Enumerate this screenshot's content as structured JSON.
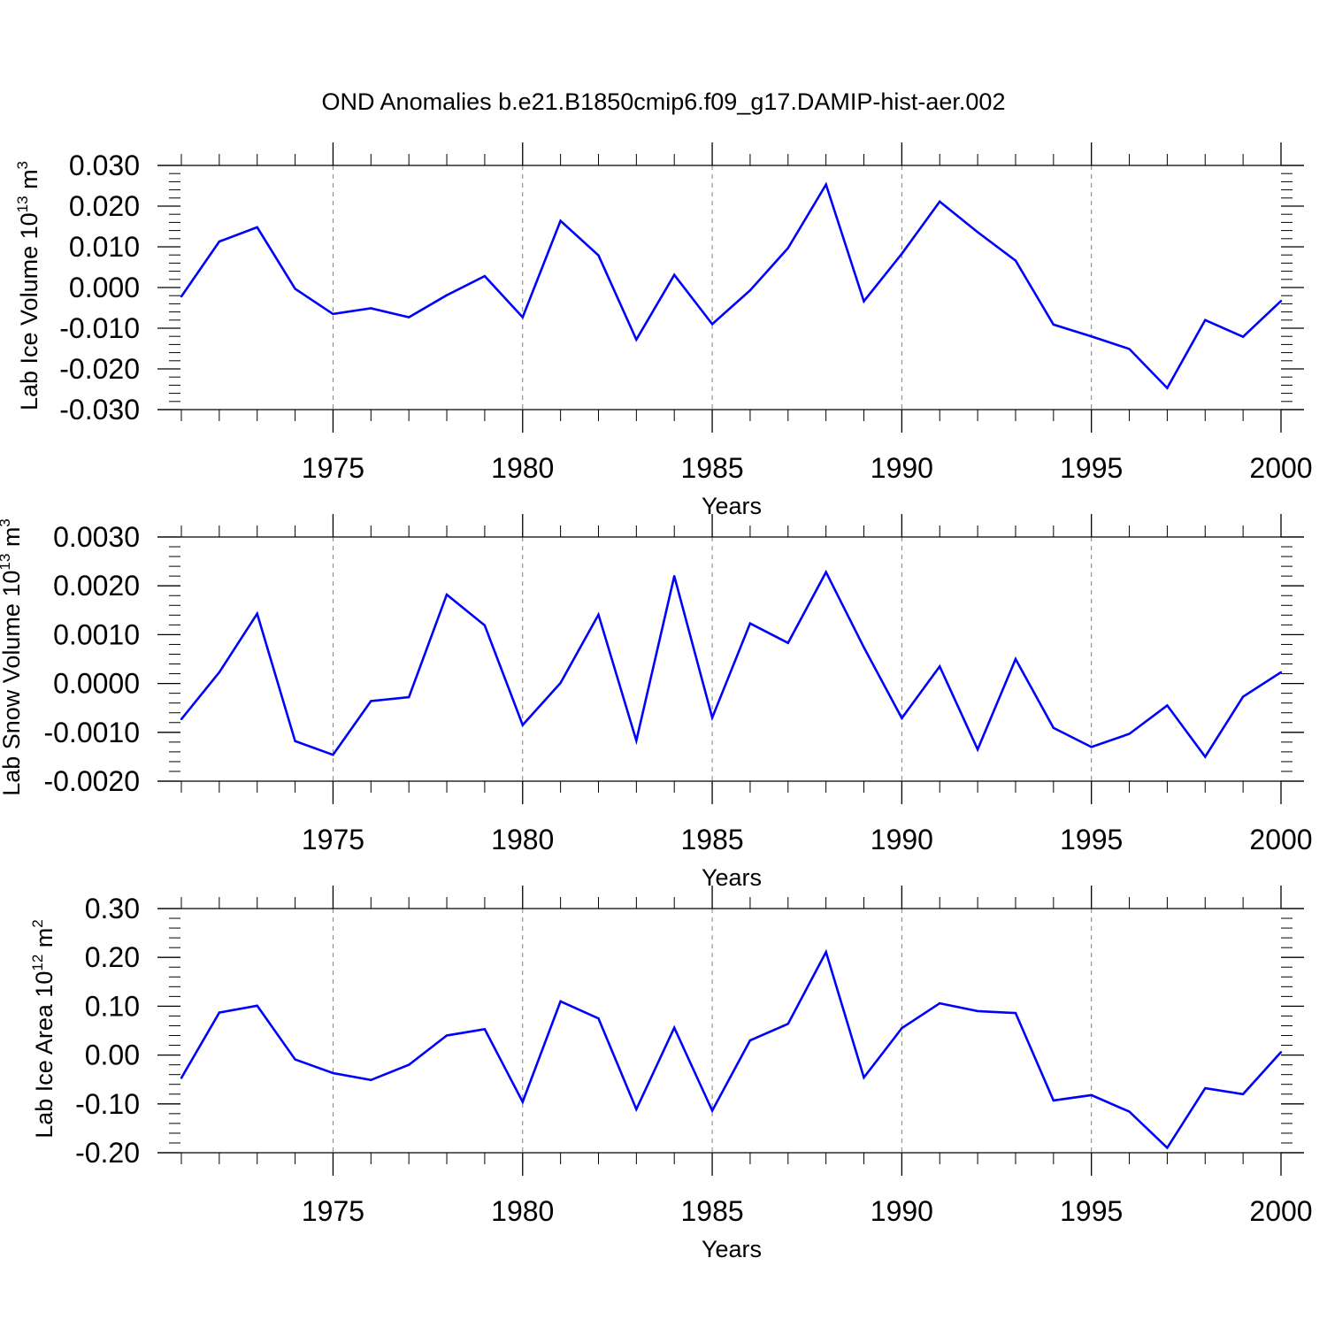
{
  "title": "OND Anomalies b.e21.B1850cmip6.f09_g17.DAMIP-hist-aer.002",
  "colors": {
    "series": "#0000ff",
    "axis": "#000000",
    "grid": "#7f7f7f"
  },
  "chart_data": [
    {
      "type": "line",
      "title": "OND Anomalies b.e21.B1850cmip6.f09_g17.DAMIP-hist-aer.002",
      "xlabel": "Years",
      "ylabel": {
        "text": "Lab Ice Volume 10",
        "sup1": "13",
        "mid": " m",
        "sup2": "3"
      },
      "xlim": [
        1971,
        2000
      ],
      "ylim": [
        -0.03,
        0.03
      ],
      "yticks": [
        "0.030",
        "0.020",
        "0.010",
        "0.000",
        "-0.010",
        "-0.020",
        "-0.030"
      ],
      "yticks_values": [
        0.03,
        0.02,
        0.01,
        0.0,
        -0.01,
        -0.02,
        -0.03
      ],
      "xticks": [
        "1975",
        "1980",
        "1985",
        "1990",
        "1995",
        "2000"
      ],
      "x": [
        1971,
        1972,
        1973,
        1974,
        1975,
        1976,
        1977,
        1978,
        1979,
        1980,
        1981,
        1982,
        1983,
        1984,
        1985,
        1986,
        1987,
        1988,
        1989,
        1990,
        1991,
        1992,
        1993,
        1994,
        1995,
        1996,
        1997,
        1998,
        1999,
        2000
      ],
      "values": [
        -0.0022,
        0.0113,
        0.0148,
        -0.0003,
        -0.0065,
        -0.0051,
        -0.0073,
        -0.0019,
        0.0028,
        -0.0073,
        0.0164,
        0.0079,
        -0.0128,
        0.0031,
        -0.009,
        -0.0007,
        0.0097,
        0.0253,
        -0.0034,
        0.0083,
        0.0211,
        0.0136,
        0.0066,
        -0.0091,
        -0.012,
        -0.0151,
        -0.0247,
        -0.008,
        -0.0121,
        -0.0033
      ],
      "grid": "vertical dashed at major x ticks"
    },
    {
      "type": "line",
      "xlabel": "Years",
      "ylabel": {
        "text": "Lab Snow Volume 10",
        "sup1": "13",
        "mid": " m",
        "sup2": "3"
      },
      "xlim": [
        1971,
        2000
      ],
      "ylim": [
        -0.002,
        0.003
      ],
      "yticks": [
        "0.0030",
        "0.0020",
        "0.0010",
        "0.0000",
        "-0.0010",
        "-0.0020"
      ],
      "yticks_values": [
        0.003,
        0.002,
        0.001,
        0.0,
        -0.001,
        -0.002
      ],
      "xticks": [
        "1975",
        "1980",
        "1985",
        "1990",
        "1995",
        "2000"
      ],
      "x": [
        1971,
        1972,
        1973,
        1974,
        1975,
        1976,
        1977,
        1978,
        1979,
        1980,
        1981,
        1982,
        1983,
        1984,
        1985,
        1986,
        1987,
        1988,
        1989,
        1990,
        1991,
        1992,
        1993,
        1994,
        1995,
        1996,
        1997,
        1998,
        1999,
        2000
      ],
      "values": [
        -0.00073,
        0.00023,
        0.00143,
        -0.00118,
        -0.00146,
        -0.00036,
        -0.00028,
        0.00182,
        0.00119,
        -0.00085,
        1e-05,
        0.00141,
        -0.00117,
        0.0022,
        -0.0007,
        0.00123,
        0.00083,
        0.00228,
        0.00074,
        -0.00071,
        0.00035,
        -0.00135,
        0.0005,
        -0.00091,
        -0.0013,
        -0.00103,
        -0.00045,
        -0.0015,
        -0.00027,
        0.00023
      ],
      "grid": "vertical dashed at major x ticks"
    },
    {
      "type": "line",
      "xlabel": "Years",
      "ylabel": {
        "text": "Lab Ice Area 10",
        "sup1": "12",
        "mid": " m",
        "sup2": "2"
      },
      "xlim": [
        1971,
        2000
      ],
      "ylim": [
        -0.2,
        0.3
      ],
      "yticks": [
        "0.30",
        "0.20",
        "0.10",
        "0.00",
        "-0.10",
        "-0.20"
      ],
      "yticks_values": [
        0.3,
        0.2,
        0.1,
        0.0,
        -0.1,
        -0.2
      ],
      "xticks": [
        "1975",
        "1980",
        "1985",
        "1990",
        "1995",
        "2000"
      ],
      "x": [
        1971,
        1972,
        1973,
        1974,
        1975,
        1976,
        1977,
        1978,
        1979,
        1980,
        1981,
        1982,
        1983,
        1984,
        1985,
        1986,
        1987,
        1988,
        1989,
        1990,
        1991,
        1992,
        1993,
        1994,
        1995,
        1996,
        1997,
        1998,
        1999,
        2000
      ],
      "values": [
        -0.047,
        0.087,
        0.101,
        -0.009,
        -0.037,
        -0.051,
        -0.02,
        0.04,
        0.053,
        -0.096,
        0.11,
        0.075,
        -0.111,
        0.056,
        -0.114,
        0.03,
        0.064,
        0.211,
        -0.046,
        0.055,
        0.106,
        0.09,
        0.086,
        -0.093,
        -0.082,
        -0.116,
        -0.19,
        -0.068,
        -0.08,
        0.006
      ],
      "grid": "vertical dashed at major x ticks"
    }
  ]
}
